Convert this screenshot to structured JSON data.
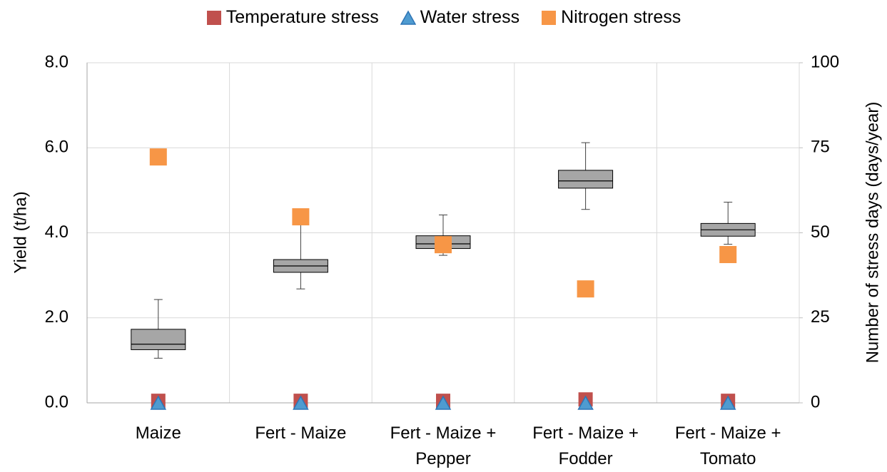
{
  "chart_data": {
    "type": "box",
    "categories": [
      "Maize",
      "Fert - Maize",
      "Fert - Maize + Pepper",
      "Fert - Maize + Fodder",
      "Fert - Maize + Tomato"
    ],
    "box": {
      "color": "#a6a6a6",
      "whislo": [
        1.05,
        2.68,
        3.47,
        4.55,
        3.73
      ],
      "q1": [
        1.25,
        3.07,
        3.63,
        5.05,
        3.92
      ],
      "med": [
        1.38,
        3.22,
        3.74,
        5.22,
        4.07
      ],
      "q3": [
        1.73,
        3.37,
        3.93,
        5.47,
        4.22
      ],
      "whishi": [
        2.43,
        4.3,
        4.42,
        6.12,
        4.72
      ]
    },
    "series": [
      {
        "name": "Temperature stress",
        "color": "#c0504d",
        "marker": "square",
        "axis": "y2",
        "values": [
          0.6,
          0.6,
          0.6,
          1,
          0.6
        ]
      },
      {
        "name": "Water stress",
        "color": "#4f9bd0",
        "marker": "triangle",
        "axis": "y2",
        "values": [
          0,
          0,
          0,
          0,
          0
        ]
      },
      {
        "name": "Nitrogen stress",
        "color": "#f79646",
        "marker": "square",
        "axis": "y2",
        "values": [
          72.3,
          54.7,
          46.5,
          33.5,
          43.6
        ]
      }
    ],
    "ylabel": "Yield (t/ha)",
    "y2label": "Number of stress days (days/year)",
    "ylim": [
      0,
      8
    ],
    "yticks": [
      {
        "value": 0,
        "label": "0.0"
      },
      {
        "value": 2,
        "label": "2.0"
      },
      {
        "value": 4,
        "label": "4.0"
      },
      {
        "value": 6,
        "label": "6.0"
      },
      {
        "value": 8,
        "label": "8.0"
      }
    ],
    "y2lim": [
      0,
      100
    ],
    "y2ticks": [
      0,
      25,
      50,
      75,
      100
    ],
    "grid": true
  }
}
